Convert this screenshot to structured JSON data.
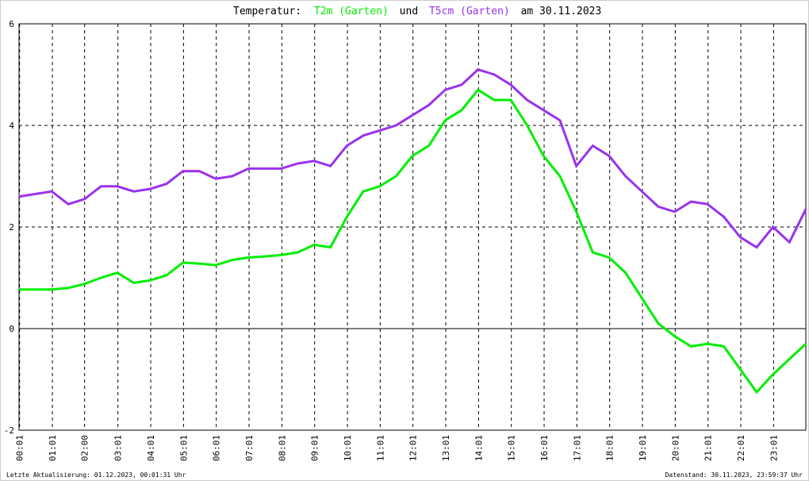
{
  "chart_data": {
    "type": "line",
    "title_parts": {
      "prefix": "Temperatur:",
      "joiner": "und",
      "suffix": "am 30.11.2023"
    },
    "x": [
      0,
      0.5,
      1,
      1.5,
      2,
      2.5,
      3,
      3.5,
      4,
      4.5,
      5,
      5.5,
      6,
      6.5,
      7,
      7.5,
      8,
      8.5,
      9,
      9.5,
      10,
      10.5,
      11,
      11.5,
      12,
      12.5,
      13,
      13.5,
      14,
      14.5,
      15,
      15.5,
      16,
      16.5,
      17,
      17.5,
      18,
      18.5,
      19,
      19.5,
      20,
      20.5,
      21,
      21.5,
      22,
      22.5,
      23,
      23.5,
      24
    ],
    "series": [
      {
        "name": "T2m (Garten)",
        "color": "#00ee00",
        "values": [
          0.77,
          0.77,
          0.77,
          0.8,
          0.88,
          1.0,
          1.1,
          0.9,
          0.95,
          1.05,
          1.3,
          1.28,
          1.25,
          1.35,
          1.4,
          1.42,
          1.45,
          1.5,
          1.65,
          1.6,
          2.2,
          2.7,
          2.8,
          3.0,
          3.4,
          3.6,
          4.1,
          4.3,
          4.7,
          4.5,
          4.5,
          4.0,
          3.4,
          3.0,
          2.3,
          1.5,
          1.4,
          1.1,
          0.6,
          0.1,
          -0.15,
          -0.35,
          -0.3,
          -0.35,
          -0.8,
          -1.25,
          -0.9,
          -0.6,
          -0.3
        ]
      },
      {
        "name": "T5cm (Garten)",
        "color": "#9933ee",
        "values": [
          2.6,
          2.65,
          2.7,
          2.45,
          2.55,
          2.8,
          2.8,
          2.7,
          2.75,
          2.85,
          3.1,
          3.1,
          2.95,
          3.0,
          3.15,
          3.15,
          3.15,
          3.25,
          3.3,
          3.2,
          3.6,
          3.8,
          3.9,
          4.0,
          4.2,
          4.4,
          4.7,
          4.8,
          5.1,
          5.0,
          4.8,
          4.5,
          4.3,
          4.1,
          3.2,
          3.6,
          3.4,
          3.0,
          2.7,
          2.4,
          2.3,
          2.5,
          2.45,
          2.2,
          1.8,
          1.6,
          2.0,
          1.7,
          2.35
        ]
      }
    ],
    "xlim": [
      0,
      24
    ],
    "xticks": [
      {
        "value": 0.017,
        "label": "00:01"
      },
      {
        "value": 1.017,
        "label": "01:01"
      },
      {
        "value": 2,
        "label": "02:00"
      },
      {
        "value": 3.017,
        "label": "03:01"
      },
      {
        "value": 4.017,
        "label": "04:01"
      },
      {
        "value": 5.017,
        "label": "05:01"
      },
      {
        "value": 6.017,
        "label": "06:01"
      },
      {
        "value": 7.017,
        "label": "07:01"
      },
      {
        "value": 8.017,
        "label": "08:01"
      },
      {
        "value": 9.017,
        "label": "09:01"
      },
      {
        "value": 10.017,
        "label": "10:01"
      },
      {
        "value": 11.017,
        "label": "11:01"
      },
      {
        "value": 12.017,
        "label": "12:01"
      },
      {
        "value": 13.017,
        "label": "13:01"
      },
      {
        "value": 14.017,
        "label": "14:01"
      },
      {
        "value": 15.017,
        "label": "15:01"
      },
      {
        "value": 16.017,
        "label": "16:01"
      },
      {
        "value": 17.017,
        "label": "17:01"
      },
      {
        "value": 18.017,
        "label": "18:01"
      },
      {
        "value": 19.017,
        "label": "19:01"
      },
      {
        "value": 20.017,
        "label": "20:01"
      },
      {
        "value": 21.017,
        "label": "21:01"
      },
      {
        "value": 22.017,
        "label": "22:01"
      },
      {
        "value": 23.017,
        "label": "23:01"
      }
    ],
    "ylim": [
      -2,
      6
    ],
    "yticks": [
      -2,
      0,
      2,
      4,
      6
    ],
    "grid": true,
    "footer_left": "Letzte Aktualisierung: 01.12.2023, 00:01:31 Uhr",
    "footer_right": "Datenstand: 30.11.2023, 23:59:37 Uhr"
  }
}
